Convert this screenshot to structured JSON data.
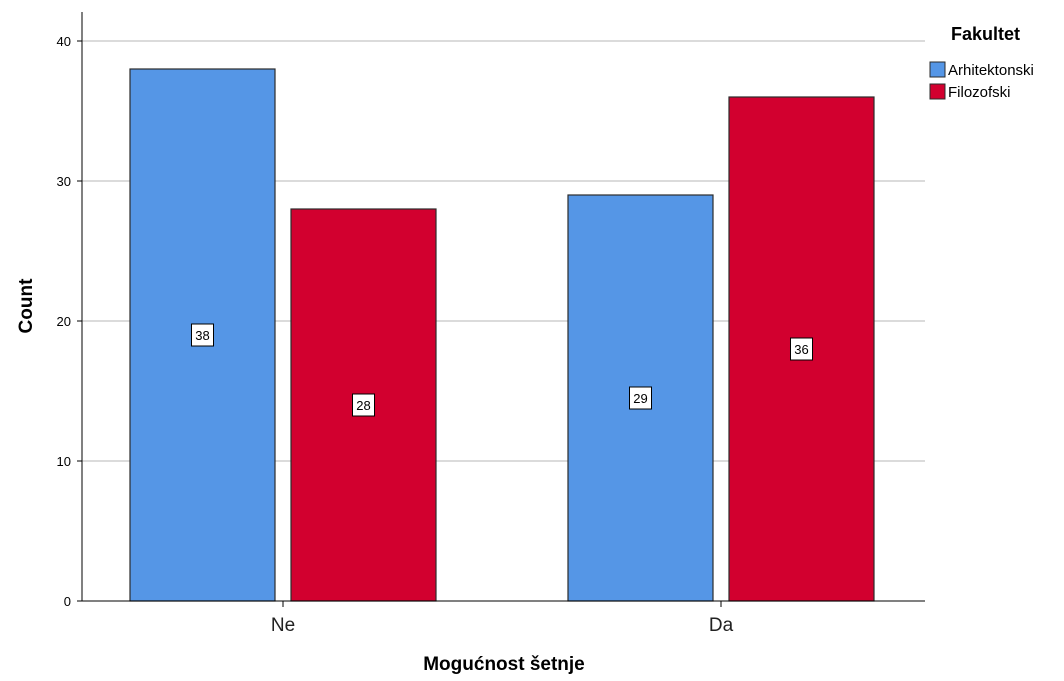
{
  "chart_data": {
    "type": "bar",
    "xlabel": "Mogućnost šetnje",
    "ylabel": "Count",
    "categories": [
      "Ne",
      "Da"
    ],
    "series": [
      {
        "name": "Arhitektonski",
        "color": "#5596e6",
        "values": [
          38,
          29
        ]
      },
      {
        "name": "Filozofski",
        "color": "#d2002f",
        "values": [
          28,
          36
        ]
      }
    ],
    "ylim": [
      0,
      42
    ],
    "yticks": [
      0,
      10,
      20,
      30,
      40
    ],
    "grid": true,
    "data_labels": true,
    "legend": {
      "title": "Fakultet",
      "position": "top-right"
    }
  }
}
